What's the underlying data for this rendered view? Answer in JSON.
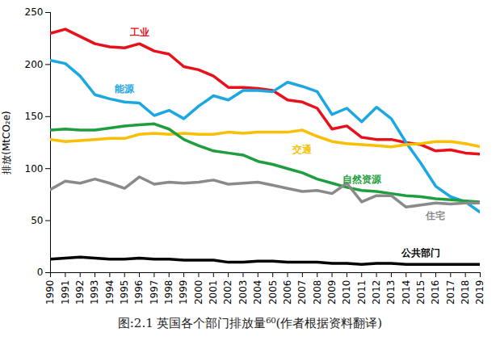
{
  "chart_data": {
    "type": "line",
    "caption": "图:2.1 英国各个部门排放量⁶⁰(作者根据资料翻译)",
    "y_label": "排放(MtCO₂e)",
    "x": [
      1990,
      1991,
      1992,
      1993,
      1994,
      1995,
      1996,
      1997,
      1998,
      1999,
      2000,
      2001,
      2002,
      2003,
      2004,
      2005,
      2006,
      2007,
      2008,
      2009,
      2010,
      2011,
      2012,
      2013,
      2014,
      2015,
      2016,
      2017,
      2018,
      2019
    ],
    "xlim": [
      1990,
      2019
    ],
    "xticks": [
      1990,
      1991,
      1992,
      1993,
      1994,
      1995,
      1996,
      1997,
      1998,
      1999,
      2000,
      2001,
      2002,
      2003,
      2004,
      2005,
      2006,
      2007,
      2008,
      2009,
      2010,
      2011,
      2012,
      2013,
      2014,
      2015,
      2016,
      2017,
      2018,
      2019
    ],
    "ylim": [
      0,
      250
    ],
    "yticks": [
      0,
      50,
      100,
      150,
      200,
      250
    ],
    "grid": false,
    "series": [
      {
        "name": "工业",
        "color": "#e8111b",
        "values": [
          230,
          234,
          227,
          220,
          217,
          216,
          220,
          213,
          210,
          198,
          195,
          189,
          178,
          178,
          177,
          175,
          166,
          164,
          158,
          138,
          141,
          130,
          128,
          128,
          125,
          123,
          117,
          118,
          115,
          114
        ]
      },
      {
        "name": "能源",
        "color": "#1aa7e2",
        "values": [
          204,
          201,
          189,
          171,
          167,
          164,
          163,
          151,
          156,
          148,
          160,
          170,
          166,
          175,
          175,
          174,
          183,
          179,
          174,
          152,
          158,
          145,
          159,
          148,
          125,
          105,
          83,
          73,
          68,
          58
        ]
      },
      {
        "name": "交通",
        "color": "#f9bf00",
        "values": [
          128,
          126,
          127,
          128,
          129,
          129,
          133,
          134,
          133,
          134,
          133,
          133,
          135,
          134,
          135,
          135,
          135,
          137,
          131,
          126,
          124,
          123,
          122,
          121,
          123,
          124,
          126,
          126,
          124,
          121
        ]
      },
      {
        "name": "自然资源",
        "color": "#1e9e3e",
        "values": [
          137,
          138,
          137,
          137,
          139,
          141,
          142,
          143,
          138,
          128,
          122,
          117,
          115,
          113,
          107,
          104,
          100,
          96,
          90,
          86,
          82,
          79,
          78,
          76,
          74,
          73,
          71,
          70,
          69,
          68
        ]
      },
      {
        "name": "住宅",
        "color": "#8a8a8a",
        "values": [
          80,
          88,
          86,
          90,
          86,
          81,
          92,
          85,
          87,
          86,
          87,
          89,
          85,
          86,
          87,
          84,
          81,
          78,
          79,
          76,
          86,
          68,
          74,
          74,
          63,
          65,
          67,
          66,
          67,
          67
        ]
      },
      {
        "name": "公共部门",
        "color": "#000000",
        "values": [
          13,
          14,
          15,
          14,
          13,
          13,
          14,
          13,
          13,
          12,
          12,
          12,
          10,
          10,
          11,
          11,
          10,
          10,
          10,
          9,
          9,
          8,
          9,
          9,
          8,
          8,
          8,
          8,
          8,
          8
        ]
      }
    ]
  }
}
